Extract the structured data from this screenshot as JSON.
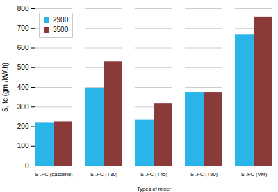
{
  "chart_data": {
    "type": "bar",
    "categories": [
      "S .FC (gasoline)",
      "S .FC (T30)",
      "S .FC (T45)",
      "S .FC (T90)",
      "S .FC (VM)"
    ],
    "series": [
      {
        "name": "2900",
        "color": "#29B5E8",
        "values": [
          218,
          395,
          235,
          375,
          668
        ]
      },
      {
        "name": "3500",
        "color": "#8B3A3A",
        "values": [
          225,
          530,
          318,
          375,
          758
        ]
      }
    ],
    "xlabel": "Types of mixer",
    "ylabel": "S, fc (gm /kW.h)",
    "ylim": [
      0,
      800
    ],
    "yticks": [
      0,
      100,
      200,
      300,
      400,
      500,
      600,
      700,
      800
    ],
    "grid": true,
    "legend": "upper left"
  }
}
